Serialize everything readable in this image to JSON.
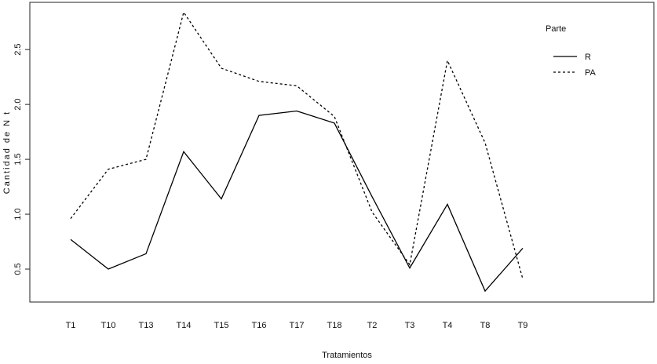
{
  "chart_data": {
    "type": "line",
    "x_label": "Tratamientos",
    "y_label": "Cantidad de N t",
    "legend_title": "Parte",
    "categories": [
      "T1",
      "T10",
      "T13",
      "T14",
      "T15",
      "T16",
      "T17",
      "T18",
      "T2",
      "T3",
      "T4",
      "T8",
      "T9"
    ],
    "series": [
      {
        "name": "R",
        "color": "#000000",
        "dash": "solid",
        "values": [
          0.77,
          0.5,
          0.64,
          1.57,
          1.14,
          1.9,
          1.94,
          1.83,
          1.16,
          0.51,
          1.09,
          0.3,
          0.69
        ]
      },
      {
        "name": "PA",
        "color": "#000000",
        "dash": "dotted",
        "values": [
          0.96,
          1.41,
          1.5,
          2.84,
          2.33,
          2.21,
          2.17,
          1.89,
          1.02,
          0.54,
          2.4,
          1.65,
          0.41
        ]
      }
    ],
    "ylim": [
      0.2,
      2.93
    ],
    "yticks": [
      0.5,
      {
        "value": 1,
        "label": "1.0"
      },
      1.5,
      {
        "value": 2,
        "label": "2.0"
      },
      2.5
    ],
    "legend": "top-right"
  }
}
